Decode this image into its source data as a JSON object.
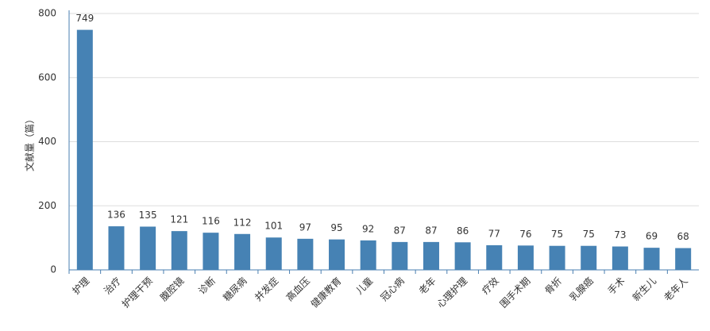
{
  "chart_data": {
    "type": "bar",
    "y_label": "文献量（篇）",
    "categories": [
      "护理",
      "治疗",
      "护理干预",
      "腹腔镜",
      "诊断",
      "糖尿病",
      "并发症",
      "高血压",
      "健康教育",
      "儿童",
      "冠心病",
      "老年",
      "心理护理",
      "疗效",
      "围手术期",
      "骨折",
      "乳腺癌",
      "手术",
      "新生儿",
      "老年人"
    ],
    "values": [
      749,
      136,
      135,
      121,
      116,
      112,
      101,
      97,
      95,
      92,
      87,
      87,
      86,
      77,
      76,
      75,
      75,
      73,
      69,
      68
    ],
    "color": "#4682b4",
    "ylim": [
      0,
      800
    ],
    "yticks": [
      0,
      200,
      400,
      600,
      800
    ],
    "grid": true
  }
}
